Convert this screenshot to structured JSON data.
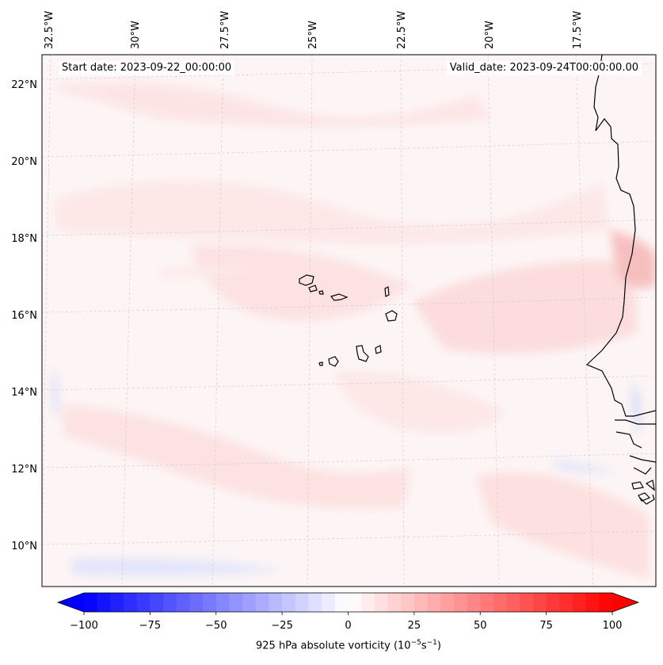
{
  "map": {
    "start_date": "Start date: 2023-09-22_00:00:00",
    "valid_date": "Valid_date: 2023-09-24T00:00:00.00",
    "longitude_labels": [
      "32.5°W",
      "30°W",
      "27.5°W",
      "25°W",
      "22.5°W",
      "20°W",
      "17.5°W"
    ],
    "latitude_labels": [
      "22°N",
      "20°N",
      "18°N",
      "16°N",
      "14°N",
      "12°N",
      "10°N"
    ]
  },
  "colorbar": {
    "min": -100,
    "max": 100,
    "tick_labels": [
      "−100",
      "−75",
      "−50",
      "−25",
      "0",
      "25",
      "50",
      "75",
      "100"
    ],
    "label_prefix": "925 hPa absolute vorticity (10",
    "label_exp1": "−5",
    "label_mid": "s",
    "label_exp2": "−1",
    "label_suffix": ")",
    "color_negative": "#0000ff",
    "color_zero": "#ffffff",
    "color_positive": "#ff0000"
  },
  "colors": {
    "background_field": "#fdf5f5",
    "coastline": "#000000",
    "gridline": "#c8c8c8"
  }
}
